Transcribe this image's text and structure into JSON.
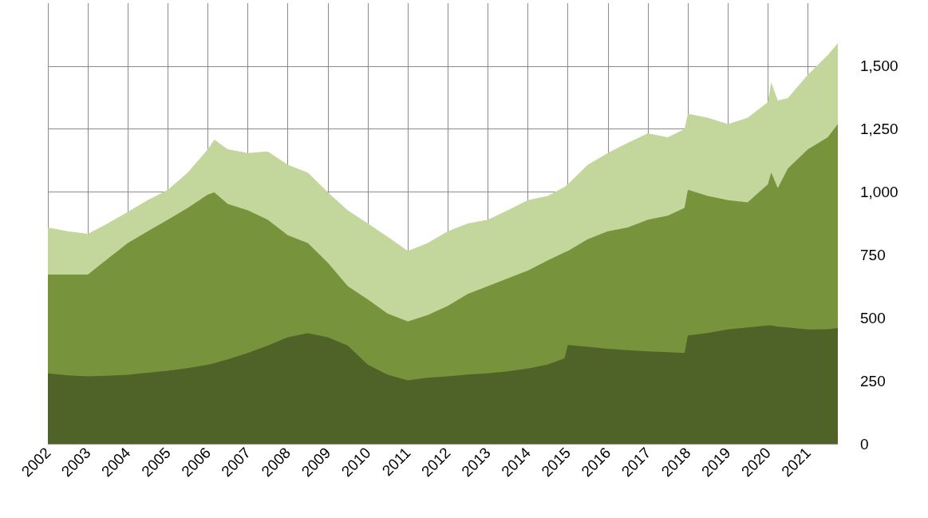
{
  "chart_data": {
    "type": "area",
    "stacked": true,
    "grid": true,
    "x": [
      "2002-01",
      "2002-07",
      "2003-01",
      "2003-07",
      "2004-01",
      "2004-07",
      "2005-01",
      "2005-07",
      "2006-01",
      "2006-03",
      "2006-07",
      "2007-01",
      "2007-07",
      "2008-01",
      "2008-07",
      "2009-01",
      "2009-07",
      "2010-01",
      "2010-07",
      "2011-01",
      "2011-07",
      "2012-01",
      "2012-07",
      "2013-01",
      "2013-07",
      "2014-01",
      "2014-07",
      "2014-12",
      "2015-01",
      "2015-07",
      "2016-01",
      "2016-07",
      "2017-01",
      "2017-07",
      "2017-12",
      "2018-01",
      "2018-07",
      "2019-01",
      "2019-07",
      "2020-01",
      "2020-02",
      "2020-04",
      "2020-07",
      "2021-01",
      "2021-07",
      "2021-10"
    ],
    "xlim": [
      "2002-01",
      "2021-10"
    ],
    "xticks": [
      "2002",
      "2003",
      "2004",
      "2005",
      "2006",
      "2007",
      "2008",
      "2009",
      "2010",
      "2011",
      "2012",
      "2013",
      "2014",
      "2015",
      "2016",
      "2017",
      "2018",
      "2019",
      "2020",
      "2021"
    ],
    "ylim": [
      0,
      1750
    ],
    "yticks": [
      0,
      250,
      500,
      750,
      {
        "value": 1000,
        "label": "1,000"
      },
      {
        "value": 1250,
        "label": "1,250"
      },
      {
        "value": 1500,
        "label": "1,500"
      }
    ],
    "series": [
      {
        "color": "#4f6228",
        "values": [
          280,
          272,
          268,
          270,
          274,
          282,
          290,
          300,
          314,
          320,
          335,
          361,
          390,
          423,
          439,
          423,
          390,
          314,
          274,
          252,
          262,
          268,
          275,
          280,
          288,
          299,
          315,
          339,
          392,
          385,
          377,
          372,
          367,
          364,
          361,
          430,
          440,
          454,
          462,
          470,
          470,
          465,
          462,
          454,
          455,
          460
        ]
      },
      {
        "color": "#77933c",
        "values": [
          392,
          400,
          404,
          465,
          523,
          562,
          600,
          637,
          676,
          679,
          618,
          566,
          500,
          405,
          358,
          296,
          236,
          259,
          243,
          234,
          249,
          280,
          320,
          346,
          369,
          389,
          413,
          421,
          374,
          427,
          467,
          487,
          523,
          542,
          576,
          579,
          544,
          514,
          497,
          560,
          607,
          550,
          631,
          716,
          762,
          810
        ]
      },
      {
        "color": "#c3d69b",
        "values": [
          187,
          172,
          162,
          140,
          124,
          124,
          119,
          140,
          180,
          209,
          217,
          228,
          271,
          280,
          280,
          280,
          301,
          302,
          305,
          280,
          286,
          296,
          280,
          264,
          270,
          280,
          256,
          260,
          264,
          296,
          311,
          336,
          343,
          311,
          313,
          302,
          311,
          302,
          336,
          327,
          358,
          348,
          280,
          296,
          327,
          321
        ]
      }
    ]
  }
}
